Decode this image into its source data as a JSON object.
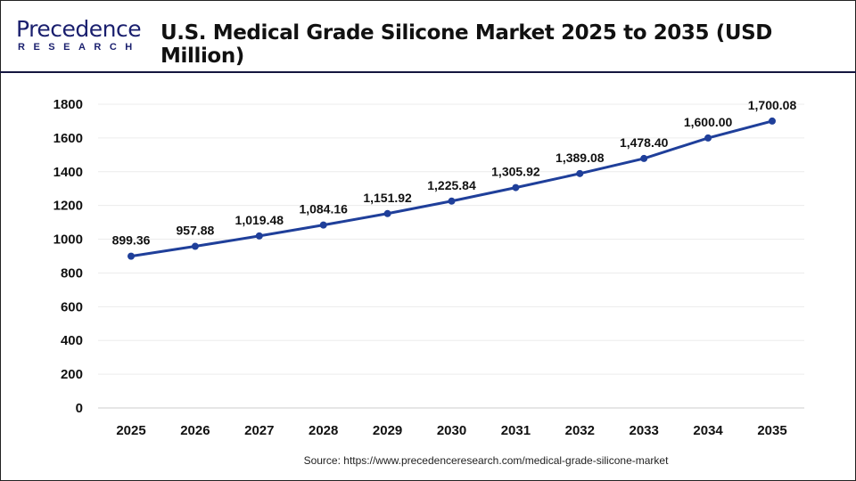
{
  "brand": {
    "name_line1": "Precedence",
    "name_line2": "RESEARCH"
  },
  "title": "U.S. Medical Grade Silicone Market 2025 to 2035  (USD Million)",
  "source": "Source: https://www.precedenceresearch.com/medical-grade-silicone-market",
  "chart_data": {
    "type": "line",
    "title": "U.S. Medical Grade Silicone Market 2025 to 2035  (USD Million)",
    "categories": [
      "2025",
      "2026",
      "2027",
      "2028",
      "2029",
      "2030",
      "2031",
      "2032",
      "2033",
      "2034",
      "2035"
    ],
    "values": [
      899.36,
      957.88,
      1019.48,
      1084.16,
      1151.92,
      1225.84,
      1305.92,
      1389.08,
      1478.4,
      1600.0,
      1700.08
    ],
    "data_labels": [
      "899.36",
      "957.88",
      "1,019.48",
      "1,084.16",
      "1,151.92",
      "1,225.84",
      "1,305.92",
      "1,389.08",
      "1,478.40",
      "1,600.00",
      "1,700.08"
    ],
    "yticks": [
      0,
      200,
      400,
      600,
      800,
      1000,
      1200,
      1400,
      1600,
      1800
    ],
    "ylim": [
      0,
      1800
    ],
    "grid": true,
    "line_color": "#1f3f9a",
    "legend": "none"
  }
}
